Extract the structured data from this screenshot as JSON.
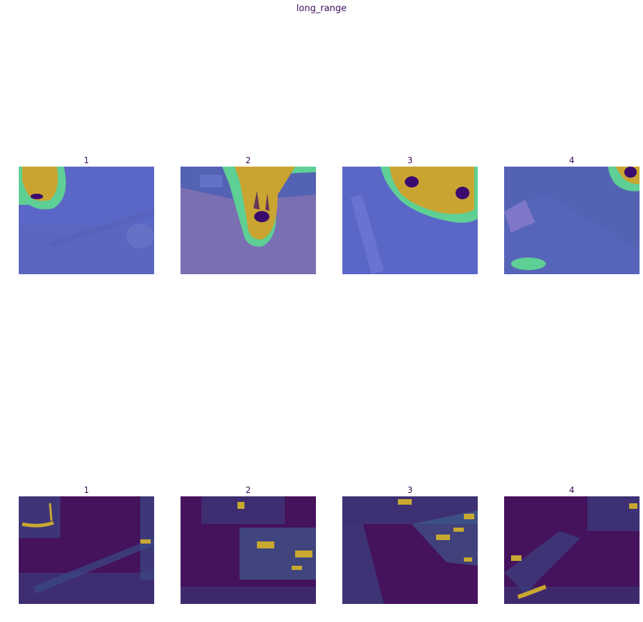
{
  "figure": {
    "suptitle": "long_range",
    "rows": [
      {
        "name": "overlay-row",
        "panels": [
          {
            "title": "1"
          },
          {
            "title": "2"
          },
          {
            "title": "3"
          },
          {
            "title": "4"
          }
        ]
      },
      {
        "name": "attention-row",
        "panels": [
          {
            "title": "1"
          },
          {
            "title": "2"
          },
          {
            "title": "3"
          },
          {
            "title": "4"
          }
        ]
      }
    ],
    "colors": {
      "overlay_bg": "#5b67c6",
      "overlay_dark": "#5462b3",
      "overlay_floor": "#7a6fb2",
      "heat_green": "#5ecf95",
      "heat_yellow": "#c9a431",
      "heat_core": "#3a0a6e",
      "viridis_bg": "#45125c",
      "viridis_mid": "#3d6f9a",
      "viridis_hi": "#c8a830"
    }
  }
}
